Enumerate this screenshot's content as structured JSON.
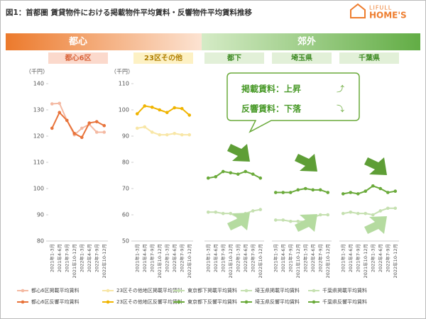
{
  "header": {
    "title": "図1：首都圏 賃貸物件における掲載物件平均賃料・反響物件平均賃料推移",
    "logo_top": "LIFULL",
    "logo_main": "HOME'S"
  },
  "groups": [
    "都心",
    "郊外"
  ],
  "callout": [
    "掲載賃料：上昇",
    "反響賃料：下落"
  ],
  "chart_data": [
    {
      "type": "line",
      "title": "都心6区",
      "y_label": "（千円）",
      "categories": [
        "2021年1-3月",
        "2021年4-6月",
        "2021年7-9月",
        "2021年10-12月",
        "2022年1-3月",
        "2022年4-6月",
        "2022年7-9月",
        "2022年10-12月"
      ],
      "series": [
        {
          "name": "都心6区掲載平均賃料",
          "color": "#f4b9a2",
          "values": [
            132.3,
            132.5,
            126,
            120.5,
            123,
            124.5,
            121.5,
            121.5
          ]
        },
        {
          "name": "都心6区反響平均賃料",
          "color": "#e8733a",
          "values": [
            123,
            129,
            126,
            121,
            119.5,
            125,
            125.5,
            124
          ]
        }
      ],
      "ylim": [
        80,
        140
      ],
      "yticks": [
        80,
        90,
        100,
        110,
        120,
        130,
        140
      ]
    },
    {
      "type": "line",
      "title": "23区その他",
      "y_label": "（千円）",
      "categories": [
        "2021年1-3月",
        "2021年4-6月",
        "2021年7-9月",
        "2021年10-12月",
        "2022年1-3月",
        "2022年4-6月",
        "2022年7-9月",
        "2022年10-12月"
      ],
      "series": [
        {
          "name": "23区その他地区掲載平均賃料",
          "color": "#f8e6a6",
          "values": [
            93,
            93.5,
            91.5,
            90.5,
            90.5,
            91,
            90.5,
            90.5
          ]
        },
        {
          "name": "23区その他地区反響平均賃料",
          "color": "#f0b400",
          "values": [
            98.5,
            101.5,
            101,
            100,
            99,
            100.8,
            100.5,
            98
          ]
        }
      ],
      "ylim": [
        50,
        110
      ],
      "yticks": [
        50,
        60,
        70,
        80,
        90,
        100,
        110
      ]
    },
    {
      "type": "line",
      "title": "都下",
      "categories": [
        "2021年1-3月",
        "2021年4-6月",
        "2021年7-9月",
        "2021年10-12月",
        "2022年1-3月",
        "2022年4-6月",
        "2022年7-9月",
        "2022年10-12月"
      ],
      "series": [
        {
          "name": "東京都下掲載平均賃料",
          "color": "#c5e0b0",
          "values": [
            61,
            61,
            60.5,
            60.5,
            59,
            60.5,
            61.5,
            62
          ]
        },
        {
          "name": "東京都下反響平均賃料",
          "color": "#6aaa3a",
          "values": [
            74,
            74.5,
            76.5,
            76,
            75.5,
            76.5,
            75.5,
            74
          ]
        }
      ],
      "ylim": [
        50,
        110
      ]
    },
    {
      "type": "line",
      "title": "埼玉県",
      "categories": [
        "2021年1-3月",
        "2021年4-6月",
        "2021年7-9月",
        "2021年10-12月",
        "2022年1-3月",
        "2022年4-6月",
        "2022年7-9月",
        "2022年10-12月"
      ],
      "series": [
        {
          "name": "埼玉県掲載平均賃料",
          "color": "#c5e0b0",
          "values": [
            58,
            58,
            57.5,
            57.5,
            57.5,
            59,
            60,
            60
          ]
        },
        {
          "name": "埼玉県反響平均賃料",
          "color": "#6aaa3a",
          "values": [
            68.5,
            68.5,
            68.5,
            69.5,
            70,
            69.5,
            69.5,
            68.5
          ]
        }
      ],
      "ylim": [
        50,
        110
      ]
    },
    {
      "type": "line",
      "title": "千葉県",
      "categories": [
        "2021年1-3月",
        "2021年4-6月",
        "2021年7-9月",
        "2021年10-12月",
        "2022年1-3月",
        "2022年4-6月",
        "2022年7-9月",
        "2022年10-12月"
      ],
      "series": [
        {
          "name": "千葉県掲載平均賃料",
          "color": "#c5e0b0",
          "values": [
            60.5,
            61,
            60.5,
            60.5,
            60,
            61.5,
            62.5,
            62.5
          ]
        },
        {
          "name": "千葉県反響平均賃料",
          "color": "#6aaa3a",
          "values": [
            68,
            68.5,
            68,
            69,
            71,
            70,
            68.5,
            69
          ]
        }
      ],
      "ylim": [
        50,
        110
      ]
    }
  ]
}
